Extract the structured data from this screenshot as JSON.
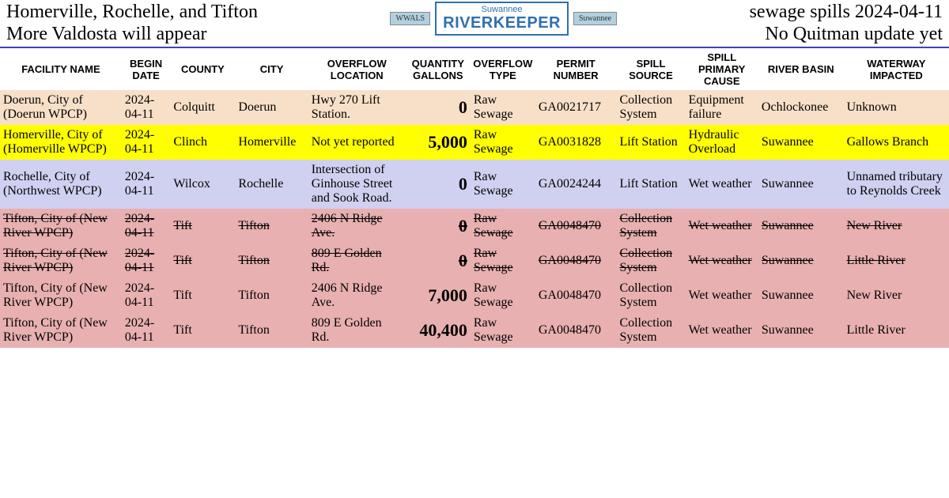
{
  "header": {
    "left_line1": "Homerville, Rochelle, and Tifton",
    "left_line2": "More Valdosta will appear",
    "right_line1": "sewage spills 2024-04-11",
    "right_line2": "No Quitman update yet",
    "logo_small": "WWALS",
    "logo_rk_top": "Suwannee",
    "logo_rk_main": "RIVERKEEPER",
    "logo_side": "Suwannee"
  },
  "columns": [
    "FACILITY NAME",
    "BEGIN DATE",
    "COUNTY",
    "CITY",
    "OVERFLOW LOCATION",
    "QUANTITY GALLONS",
    "OVERFLOW TYPE",
    "PERMIT NUMBER",
    "SPILL SOURCE",
    "SPILL PRIMARY CAUSE",
    "RIVER BASIN",
    "WATERWAY IMPACTED"
  ],
  "rows": [
    {
      "style": "peach",
      "strike": false,
      "facility": "Doerun, City of (Doerun WPCP)",
      "date": "2024-04-11",
      "county": "Colquitt",
      "city": "Doerun",
      "location": "Hwy 270 Lift Station.",
      "qty": "0",
      "type": "Raw Sewage",
      "permit": "GA0021717",
      "source": "Collection System",
      "cause": "Equipment failure",
      "basin": "Ochlockonee",
      "waterway": "Unknown"
    },
    {
      "style": "yellow",
      "strike": false,
      "facility": "Homerville, City of (Homerville WPCP)",
      "date": "2024-04-11",
      "county": "Clinch",
      "city": "Homerville",
      "location": "Not yet reported",
      "qty": "5,000",
      "type": "Raw Sewage",
      "permit": "GA0031828",
      "source": "Lift Station",
      "cause": "Hydraulic Overload",
      "basin": "Suwannee",
      "waterway": "Gallows Branch"
    },
    {
      "style": "lavender",
      "strike": false,
      "facility": "Rochelle, City of (Northwest WPCP)",
      "date": "2024-04-11",
      "county": "Wilcox",
      "city": "Rochelle",
      "location": "Intersection of Ginhouse Street and Sook Road.",
      "qty": "0",
      "type": "Raw Sewage",
      "permit": "GA0024244",
      "source": "Lift Station",
      "cause": "Wet weather",
      "basin": "Suwannee",
      "waterway": "Unnamed tributary to Reynolds Creek"
    },
    {
      "style": "pink",
      "strike": true,
      "facility": "Tifton, City of (New River WPCP)",
      "date": "2024-04-11",
      "county": "Tift",
      "city": "Tifton",
      "location": "2406 N Ridge Ave.",
      "qty": "0",
      "type": "Raw Sewage",
      "permit": "GA0048470",
      "source": "Collection System",
      "cause": "Wet weather",
      "basin": "Suwannee",
      "waterway": "New River"
    },
    {
      "style": "pink",
      "strike": true,
      "facility": "Tifton, City of (New River WPCP)",
      "date": "2024-04-11",
      "county": "Tift",
      "city": "Tifton",
      "location": "809 E Golden Rd.",
      "qty": "0",
      "type": "Raw Sewage",
      "permit": "GA0048470",
      "source": "Collection System",
      "cause": "Wet weather",
      "basin": "Suwannee",
      "waterway": "Little River"
    },
    {
      "style": "pink",
      "strike": false,
      "facility": "Tifton, City of (New River WPCP)",
      "date": "2024-04-11",
      "county": "Tift",
      "city": "Tifton",
      "location": "2406 N Ridge Ave.",
      "qty": "7,000",
      "type": "Raw Sewage",
      "permit": "GA0048470",
      "source": "Collection System",
      "cause": "Wet weather",
      "basin": "Suwannee",
      "waterway": "New River"
    },
    {
      "style": "pink",
      "strike": false,
      "facility": "Tifton, City of (New River WPCP)",
      "date": "2024-04-11",
      "county": "Tift",
      "city": "Tifton",
      "location": "809 E Golden Rd.",
      "qty": "40,400",
      "type": "Raw Sewage",
      "permit": "GA0048470",
      "source": "Collection System",
      "cause": "Wet weather",
      "basin": "Suwannee",
      "waterway": "Little River"
    }
  ]
}
